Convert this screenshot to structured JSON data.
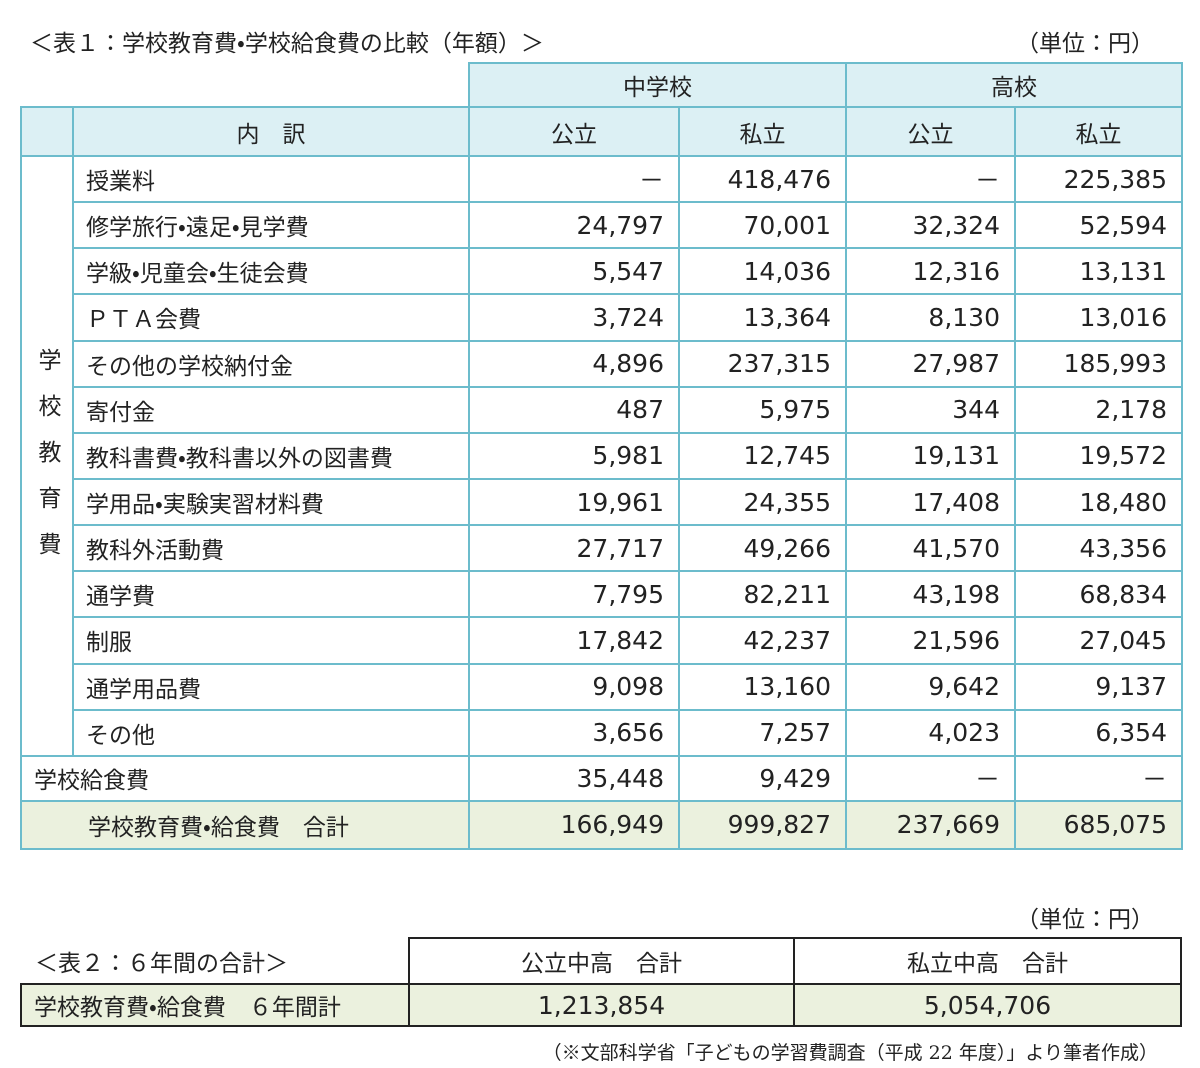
{
  "table1": {
    "title": "＜表１：学校教育費・学校給食費の比較（年額）＞",
    "unit": "（単位：円）",
    "group_headers": [
      "中学校",
      "高校"
    ],
    "item_header": "内　訳",
    "sub_headers": [
      "公立",
      "私立",
      "公立",
      "私立"
    ],
    "side_label": "学校教育費",
    "rows": [
      [
        "授業料",
        "－",
        "418,476",
        "－",
        "225,385"
      ],
      [
        "修学旅行・遠足・見学費",
        "24,797",
        "70,001",
        "32,324",
        "52,594"
      ],
      [
        "学級・児童会・生徒会費",
        "5,547",
        "14,036",
        "12,316",
        "13,131"
      ],
      [
        "ＰＴＡ会費",
        "3,724",
        "13,364",
        "8,130",
        "13,016"
      ],
      [
        "その他の学校納付金",
        "4,896",
        "237,315",
        "27,987",
        "185,993"
      ],
      [
        "寄付金",
        "487",
        "5,975",
        "344",
        "2,178"
      ],
      [
        "教科書費・教科書以外の図書費",
        "5,981",
        "12,745",
        "19,131",
        "19,572"
      ],
      [
        "学用品・実験実習材料費",
        "19,961",
        "24,355",
        "17,408",
        "18,480"
      ],
      [
        "教科外活動費",
        "27,717",
        "49,266",
        "41,570",
        "43,356"
      ],
      [
        "通学費",
        "7,795",
        "82,211",
        "43,198",
        "68,834"
      ],
      [
        "制服",
        "17,842",
        "42,237",
        "21,596",
        "27,045"
      ],
      [
        "通学用品費",
        "9,098",
        "13,160",
        "9,642",
        "9,137"
      ],
      [
        "その他",
        "3,656",
        "7,257",
        "4,023",
        "6,354"
      ]
    ],
    "lunch_row": [
      "学校給食費",
      "35,448",
      "9,429",
      "－",
      "－"
    ],
    "total_row": [
      "学校教育費・給食費　合計",
      "166,949",
      "999,827",
      "237,669",
      "685,075"
    ]
  },
  "table2": {
    "unit": "（単位：円）",
    "title": "＜表２：６年間の合計＞",
    "headers": [
      "公立中高　合計",
      "私立中高　合計"
    ],
    "row": [
      "学校教育費・給食費　６年間計",
      "1,213,854",
      "5,054,706"
    ]
  },
  "source": "（※文部科学省「子どもの学習費調査（平成 22 年度）」より筆者作成）"
}
